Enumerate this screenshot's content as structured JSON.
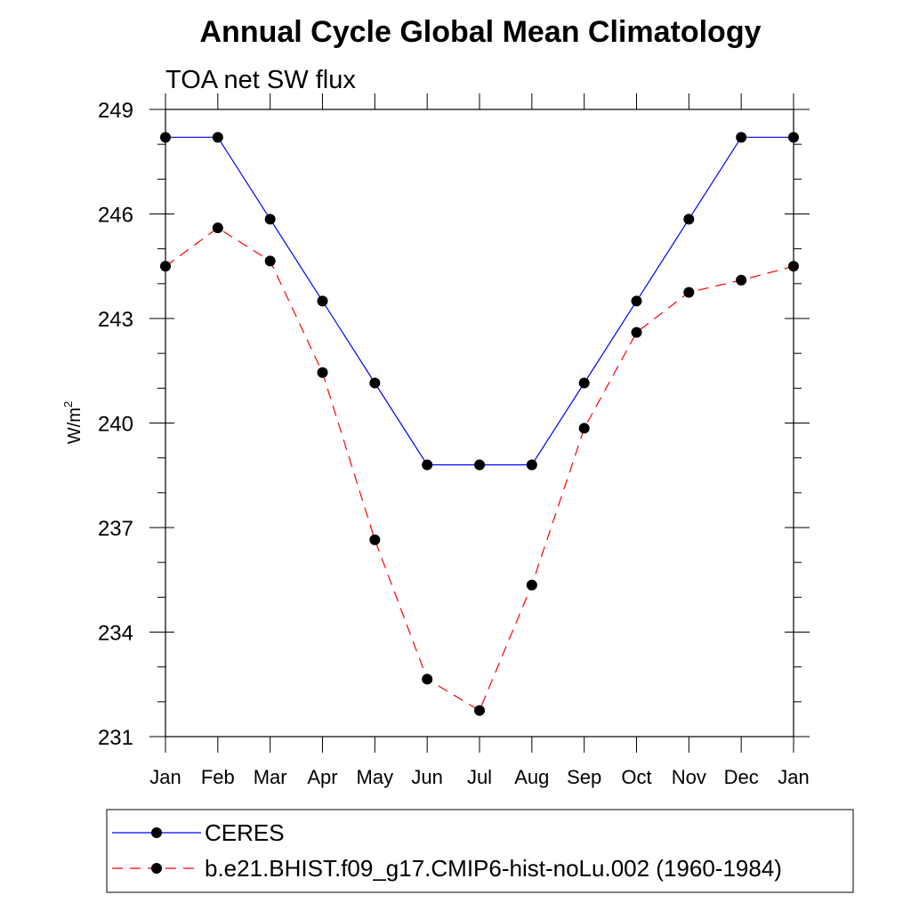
{
  "chart_data": {
    "type": "line",
    "title": "Annual Cycle Global Mean Climatology",
    "subtitle": "TOA net SW flux",
    "ylabel": "W/m",
    "ylabel_sup": "2",
    "xlabel": "",
    "categories": [
      "Jan",
      "Feb",
      "Mar",
      "Apr",
      "May",
      "Jun",
      "Jul",
      "Aug",
      "Sep",
      "Oct",
      "Nov",
      "Dec",
      "Jan"
    ],
    "ylim": [
      231,
      249
    ],
    "yticks": [
      231,
      234,
      237,
      240,
      243,
      246,
      249
    ],
    "grid": false,
    "legend_position": "bottom",
    "series": [
      {
        "name": "CERES",
        "color": "#0000ff",
        "line_style": "solid",
        "marker": "filled-circle",
        "values": [
          248.2,
          248.2,
          245.85,
          243.5,
          241.15,
          238.8,
          238.8,
          238.8,
          241.15,
          243.5,
          245.85,
          248.2,
          248.2
        ]
      },
      {
        "name": "b.e21.BHIST.f09_g17.CMIP6-hist-noLu.002 (1960-1984)",
        "color": "#ff0000",
        "line_style": "dashed",
        "marker": "filled-circle",
        "values": [
          244.5,
          245.6,
          244.65,
          241.45,
          236.65,
          232.65,
          231.75,
          235.35,
          239.85,
          242.6,
          243.75,
          244.1,
          244.5
        ]
      }
    ]
  }
}
